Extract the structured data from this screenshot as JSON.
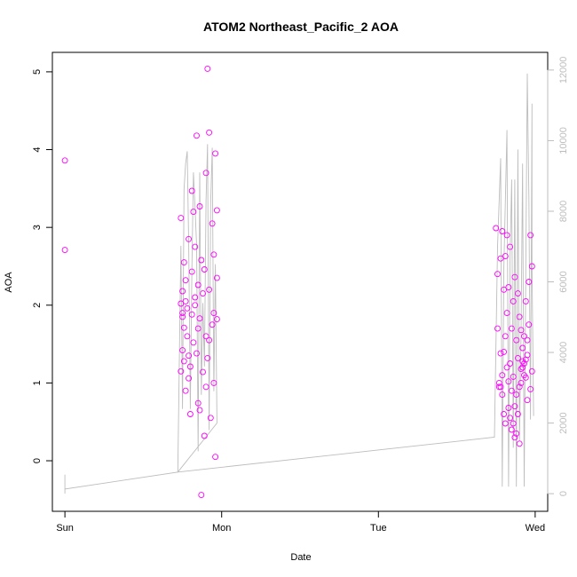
{
  "chart_data": {
    "type": "scatter",
    "title": "ATOM2 Northeast_Pacific_2 AOA",
    "xlabel": "Date",
    "ylabel": "AOA",
    "x_ticks": [
      {
        "value": 0,
        "label": "Sun"
      },
      {
        "value": 1,
        "label": "Mon"
      },
      {
        "value": 2,
        "label": "Tue"
      },
      {
        "value": 3,
        "label": "Wed"
      }
    ],
    "y_ticks": [
      0,
      1,
      2,
      3,
      4,
      5
    ],
    "y2_ticks": [
      0,
      2000,
      4000,
      6000,
      8000,
      10000,
      12000
    ],
    "xlim": [
      -0.08,
      3.08
    ],
    "ylim": [
      -0.65,
      5.25
    ],
    "y2lim": [
      -500,
      12500
    ],
    "grid": false,
    "colors": {
      "points": "#ff00ff",
      "line": "#bdbdbd",
      "axis": "#000000",
      "axis_right": "#bdbdbd"
    },
    "series": [
      {
        "kind": "scatter",
        "axis": "left",
        "points": [
          [
            0.0,
            3.86
          ],
          [
            0.0,
            2.71
          ],
          [
            0.74,
            2.02
          ],
          [
            0.74,
            1.15
          ],
          [
            0.74,
            3.12
          ],
          [
            0.75,
            2.18
          ],
          [
            0.75,
            1.85
          ],
          [
            0.75,
            1.42
          ],
          [
            0.76,
            2.55
          ],
          [
            0.76,
            1.71
          ],
          [
            0.76,
            1.28
          ],
          [
            0.77,
            2.32
          ],
          [
            0.77,
            0.9
          ],
          [
            0.78,
            1.96
          ],
          [
            0.78,
            1.6
          ],
          [
            0.79,
            1.06
          ],
          [
            0.79,
            2.85
          ],
          [
            0.8,
            0.6
          ],
          [
            0.8,
            1.21
          ],
          [
            0.81,
            2.43
          ],
          [
            0.81,
            1.88
          ],
          [
            0.81,
            3.47
          ],
          [
            0.82,
            3.2
          ],
          [
            0.82,
            1.52
          ],
          [
            0.83,
            2.75
          ],
          [
            0.83,
            2.1
          ],
          [
            0.84,
            4.18
          ],
          [
            0.84,
            1.38
          ],
          [
            0.85,
            0.74
          ],
          [
            0.85,
            2.26
          ],
          [
            0.86,
            1.83
          ],
          [
            0.86,
            3.27
          ],
          [
            0.86,
            0.65
          ],
          [
            0.87,
            2.58
          ],
          [
            0.87,
            -0.44
          ],
          [
            0.88,
            1.14
          ],
          [
            0.89,
            0.32
          ],
          [
            0.89,
            2.46
          ],
          [
            0.9,
            1.6
          ],
          [
            0.9,
            0.95
          ],
          [
            0.9,
            3.7
          ],
          [
            0.91,
            5.04
          ],
          [
            0.91,
            1.32
          ],
          [
            0.92,
            2.2
          ],
          [
            0.92,
            4.22
          ],
          [
            0.93,
            0.55
          ],
          [
            0.94,
            1.75
          ],
          [
            0.94,
            3.05
          ],
          [
            0.95,
            2.65
          ],
          [
            0.95,
            1.0
          ],
          [
            0.96,
            3.95
          ],
          [
            0.96,
            0.05
          ],
          [
            0.97,
            3.22
          ],
          [
            0.97,
            1.82
          ],
          [
            0.97,
            2.35
          ],
          [
            0.75,
            1.9
          ],
          [
            0.77,
            2.05
          ],
          [
            0.79,
            1.35
          ],
          [
            0.83,
            2.0
          ],
          [
            0.85,
            1.7
          ],
          [
            0.88,
            2.15
          ],
          [
            0.92,
            1.55
          ],
          [
            0.95,
            1.9
          ],
          [
            2.75,
            2.99
          ],
          [
            2.76,
            2.4
          ],
          [
            2.76,
            1.7
          ],
          [
            2.77,
            1.0
          ],
          [
            2.77,
            0.95
          ],
          [
            2.78,
            2.6
          ],
          [
            2.78,
            1.38
          ],
          [
            2.79,
            2.95
          ],
          [
            2.79,
            0.85
          ],
          [
            2.8,
            2.2
          ],
          [
            2.8,
            1.4
          ],
          [
            2.81,
            2.63
          ],
          [
            2.81,
            0.48
          ],
          [
            2.82,
            2.9
          ],
          [
            2.82,
            1.9
          ],
          [
            2.83,
            2.23
          ],
          [
            2.83,
            0.68
          ],
          [
            2.84,
            2.75
          ],
          [
            2.84,
            1.25
          ],
          [
            2.85,
            1.7
          ],
          [
            2.85,
            0.4
          ],
          [
            2.86,
            2.05
          ],
          [
            2.86,
            1.08
          ],
          [
            2.87,
            2.36
          ],
          [
            2.87,
            0.3
          ],
          [
            2.88,
            1.55
          ],
          [
            2.88,
            0.85
          ],
          [
            2.89,
            2.15
          ],
          [
            2.89,
            1.32
          ],
          [
            2.9,
            0.22
          ],
          [
            2.9,
            1.85
          ],
          [
            2.91,
            1.68
          ],
          [
            2.91,
            1.18
          ],
          [
            2.92,
            1.28
          ],
          [
            2.92,
            1.45
          ],
          [
            2.93,
            1.6
          ],
          [
            2.93,
            1.25
          ],
          [
            2.94,
            1.07
          ],
          [
            2.94,
            2.05
          ],
          [
            2.95,
            1.36
          ],
          [
            2.95,
            0.78
          ],
          [
            2.96,
            2.3
          ],
          [
            2.96,
            1.75
          ],
          [
            2.97,
            2.9
          ],
          [
            2.97,
            0.92
          ],
          [
            2.98,
            2.5
          ],
          [
            2.98,
            1.15
          ],
          [
            2.86,
            0.48
          ],
          [
            2.88,
            0.35
          ],
          [
            2.89,
            0.6
          ],
          [
            2.9,
            0.95
          ],
          [
            2.91,
            1.0
          ],
          [
            2.92,
            1.2
          ],
          [
            2.93,
            1.1
          ],
          [
            2.94,
            1.3
          ],
          [
            2.95,
            1.55
          ],
          [
            2.87,
            0.7
          ],
          [
            2.85,
            0.9
          ],
          [
            2.84,
            0.55
          ],
          [
            2.83,
            1.02
          ],
          [
            2.82,
            1.2
          ],
          [
            2.81,
            1.6
          ],
          [
            2.8,
            0.6
          ],
          [
            2.79,
            1.1
          ],
          [
            2.78,
            0.95
          ]
        ]
      },
      {
        "kind": "line",
        "axis": "right",
        "points": [
          [
            0.0,
            536
          ],
          [
            0.0,
            0
          ],
          [
            0.0,
            130
          ],
          [
            0.72,
            612
          ],
          [
            0.74,
            7020
          ],
          [
            0.75,
            2400
          ],
          [
            0.76,
            8612
          ],
          [
            0.77,
            9350
          ],
          [
            0.78,
            9700
          ],
          [
            0.79,
            7020
          ],
          [
            0.8,
            2400
          ],
          [
            0.81,
            6400
          ],
          [
            0.82,
            9100
          ],
          [
            0.83,
            8100
          ],
          [
            0.84,
            7030
          ],
          [
            0.85,
            1200
          ],
          [
            0.86,
            9100
          ],
          [
            0.87,
            2800
          ],
          [
            0.88,
            5400
          ],
          [
            0.89,
            3600
          ],
          [
            0.9,
            8300
          ],
          [
            0.91,
            9900
          ],
          [
            0.92,
            1800
          ],
          [
            0.93,
            8200
          ],
          [
            0.94,
            9800
          ],
          [
            0.95,
            2900
          ],
          [
            0.96,
            6500
          ],
          [
            0.97,
            2000
          ],
          [
            0.72,
            612
          ],
          [
            2.74,
            1600
          ],
          [
            2.76,
            7000
          ],
          [
            2.78,
            9500
          ],
          [
            2.79,
            200
          ],
          [
            2.8,
            6400
          ],
          [
            2.82,
            10300
          ],
          [
            2.83,
            200
          ],
          [
            2.84,
            6700
          ],
          [
            2.85,
            8900
          ],
          [
            2.86,
            1300
          ],
          [
            2.87,
            8900
          ],
          [
            2.88,
            200
          ],
          [
            2.89,
            9750
          ],
          [
            2.9,
            1500
          ],
          [
            2.91,
            4600
          ],
          [
            2.92,
            9350
          ],
          [
            2.93,
            200
          ],
          [
            2.94,
            6300
          ],
          [
            2.95,
            11900
          ],
          [
            2.96,
            8400
          ],
          [
            2.97,
            2100
          ],
          [
            2.98,
            11050
          ],
          [
            2.98,
            6450
          ],
          [
            2.99,
            2200
          ]
        ]
      }
    ]
  }
}
